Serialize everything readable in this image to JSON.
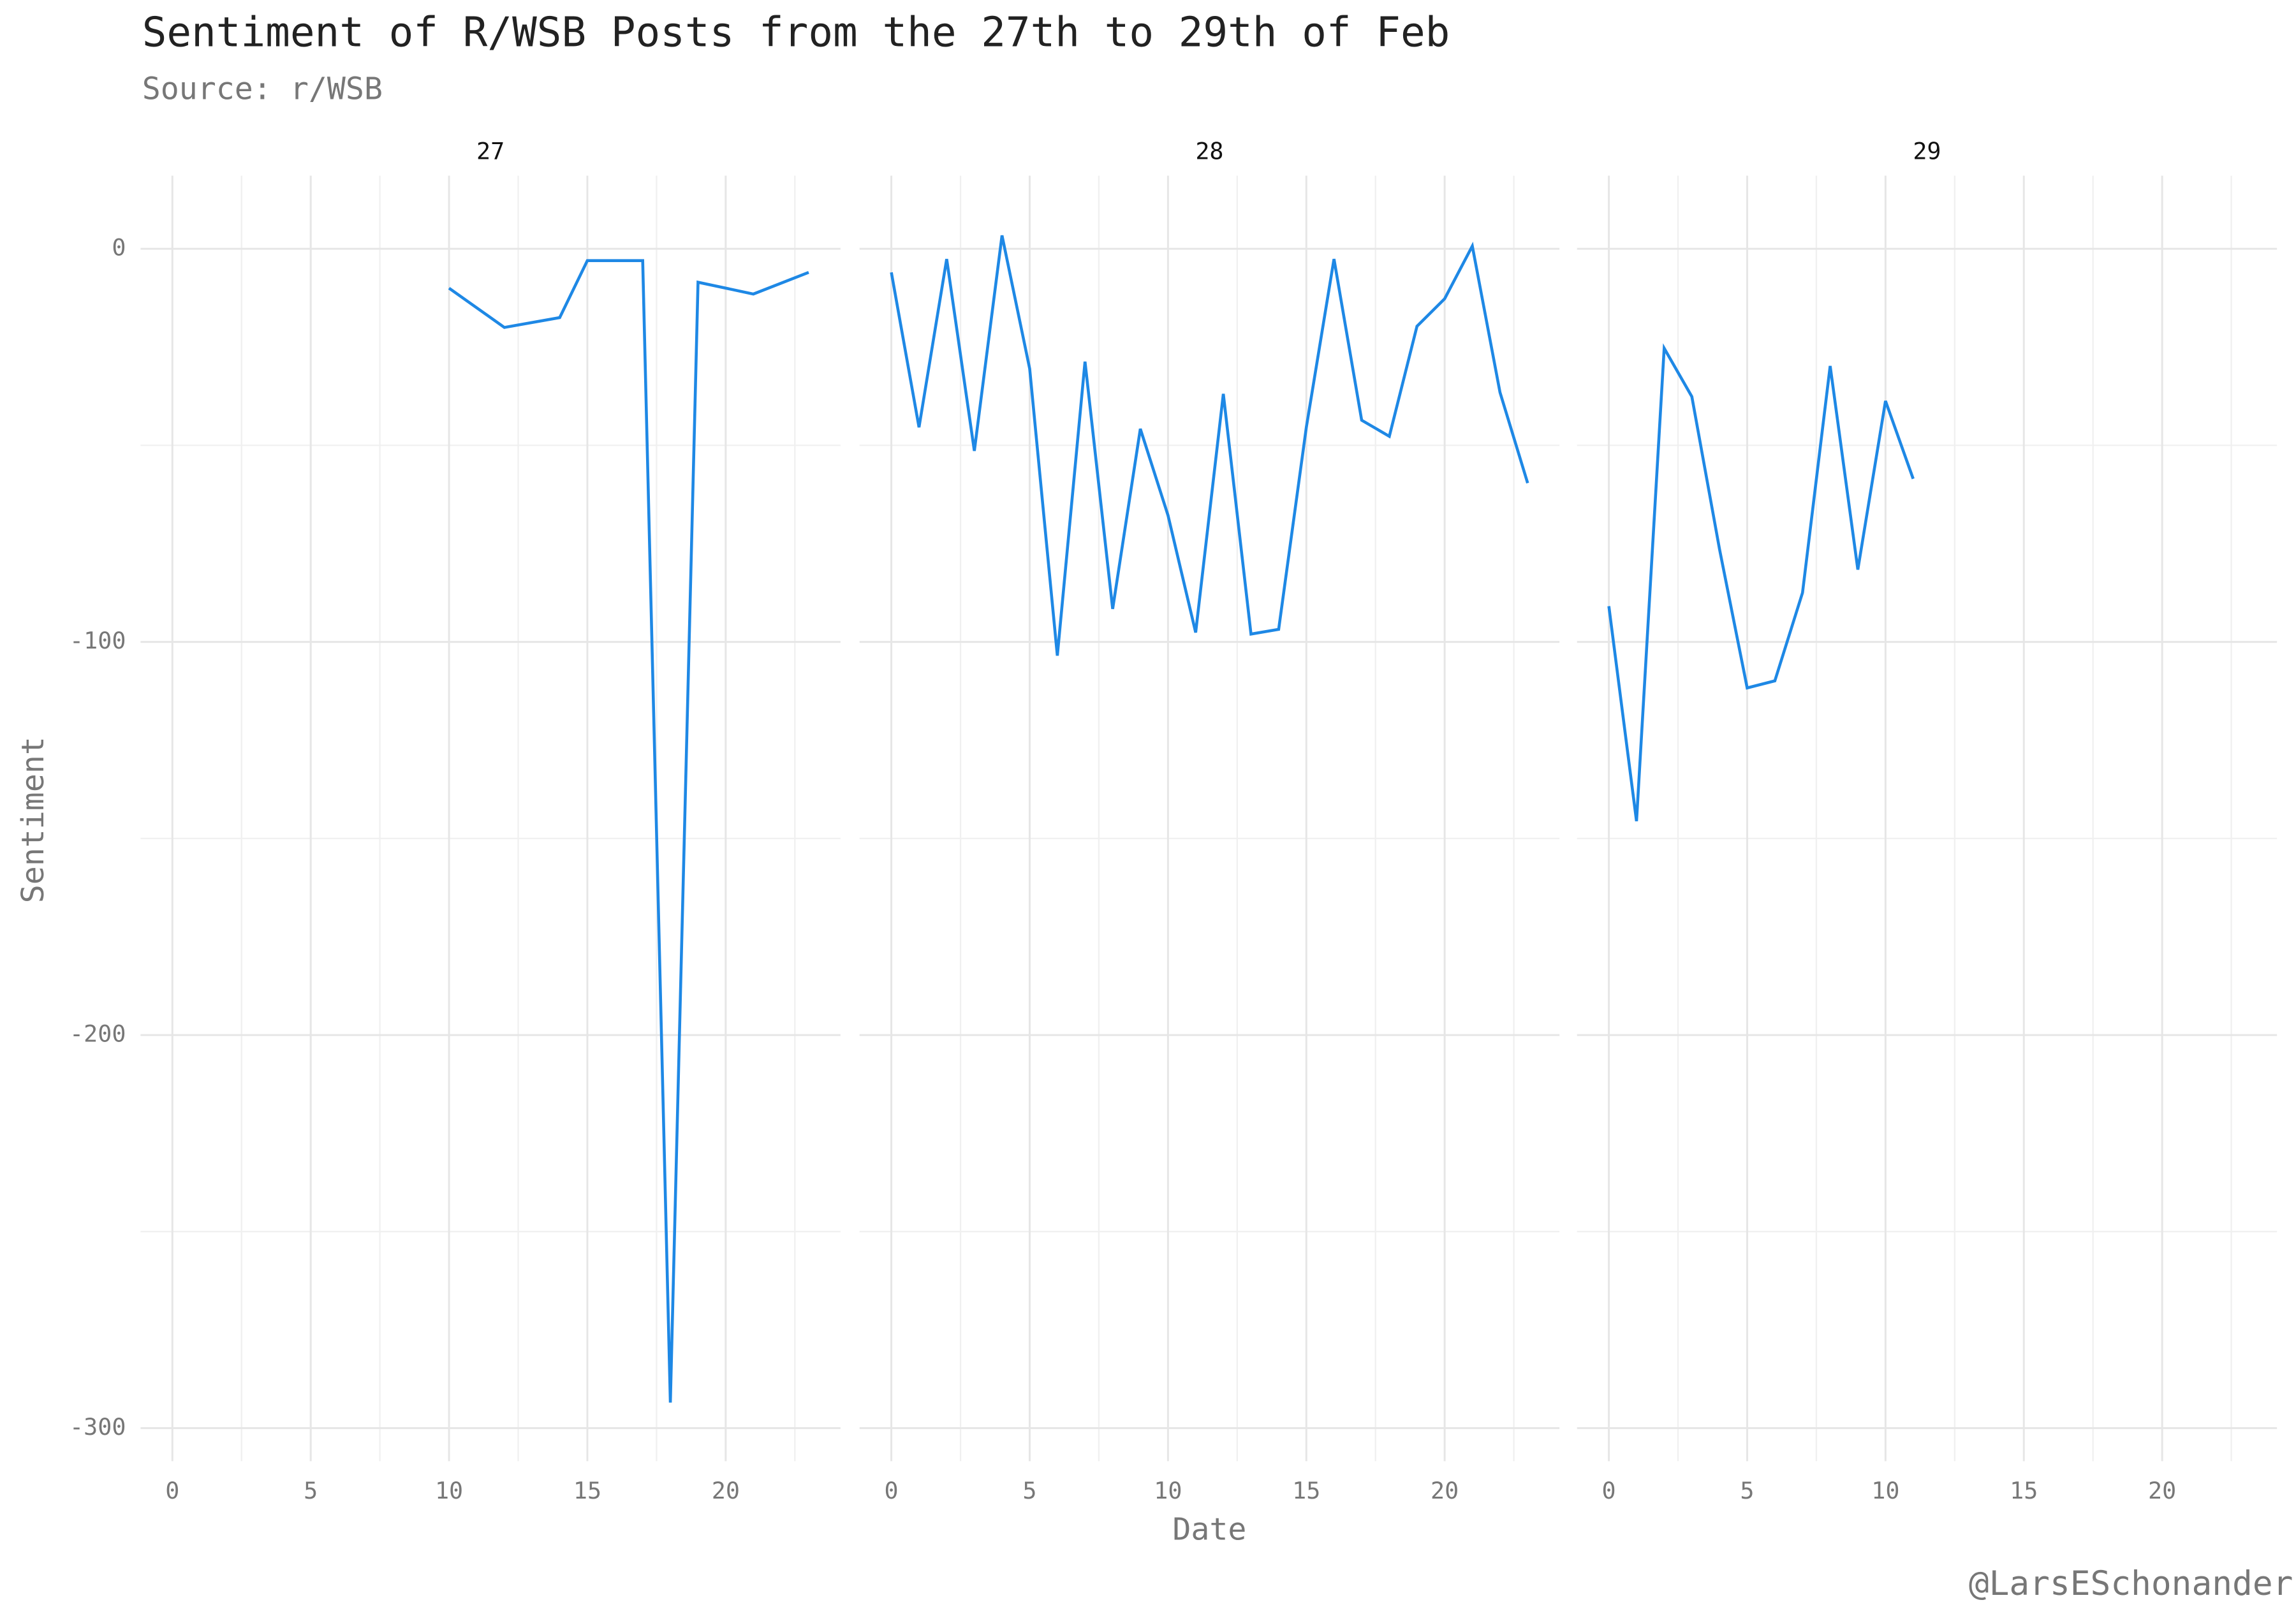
{
  "chart_data": {
    "type": "line",
    "title": "Sentiment of R/WSB Posts from the 27th to 29th of Feb",
    "subtitle": "Source: r/WSB",
    "x_label": "Date",
    "y_label": "Sentiment",
    "caption": "@LarsESchonander",
    "color": "#1e88e5",
    "grid": true,
    "xlim": [
      -1.15,
      24.15
    ],
    "ylim": [
      -308.4,
      18.6
    ],
    "xticks": [
      0,
      5,
      10,
      15,
      20
    ],
    "yticks": [
      -300,
      -200,
      -100,
      0
    ],
    "x_minor_gridlines": [
      2.5,
      7.5,
      12.5,
      17.5,
      22.5
    ],
    "y_minor_gridlines": [
      -250,
      -150,
      -50
    ],
    "facets": [
      {
        "title": "27",
        "x": [
          10,
          12,
          14,
          15,
          16,
          17,
          18,
          19,
          21,
          23
        ],
        "values": [
          -10,
          -20,
          -17.5,
          -3,
          -3,
          -3,
          -293.5,
          -8.5,
          -11.5,
          -6
        ]
      },
      {
        "title": "28",
        "x": [
          0,
          1,
          2,
          3,
          4,
          5,
          6,
          7,
          8,
          9,
          10,
          11,
          12,
          13,
          14,
          15,
          16,
          17,
          18,
          19,
          20,
          21,
          22,
          23
        ],
        "values": [
          -6,
          -45.4,
          -2.6,
          -51.4,
          3.4,
          -30.5,
          -103.5,
          -28.7,
          -91.6,
          -45.8,
          -67.8,
          -97.6,
          -36.9,
          -98,
          -96.8,
          -45.4,
          -2.6,
          -43.6,
          -47.7,
          -19.7,
          -12.7,
          0.7,
          -36.5,
          -59.6
        ]
      },
      {
        "title": "29",
        "x": [
          0,
          1,
          2,
          3,
          4,
          5,
          6,
          7,
          8,
          9,
          10,
          11
        ],
        "values": [
          -90.9,
          -145.6,
          -25.3,
          -37.6,
          -76.4,
          -111.7,
          -109.9,
          -87.5,
          -29.8,
          -81.6,
          -38.7,
          -58.5
        ]
      }
    ]
  }
}
